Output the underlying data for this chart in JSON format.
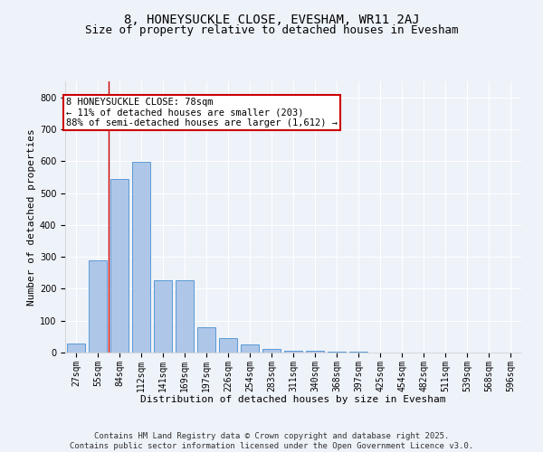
{
  "title_line1": "8, HONEYSUCKLE CLOSE, EVESHAM, WR11 2AJ",
  "title_line2": "Size of property relative to detached houses in Evesham",
  "xlabel": "Distribution of detached houses by size in Evesham",
  "ylabel": "Number of detached properties",
  "categories": [
    "27sqm",
    "55sqm",
    "84sqm",
    "112sqm",
    "141sqm",
    "169sqm",
    "197sqm",
    "226sqm",
    "254sqm",
    "283sqm",
    "311sqm",
    "340sqm",
    "368sqm",
    "397sqm",
    "425sqm",
    "454sqm",
    "482sqm",
    "511sqm",
    "539sqm",
    "568sqm",
    "596sqm"
  ],
  "values": [
    27,
    290,
    545,
    597,
    226,
    226,
    78,
    45,
    25,
    10,
    7,
    5,
    3,
    2,
    1,
    0,
    0,
    0,
    0,
    0,
    0
  ],
  "bar_color": "#aec6e8",
  "bar_edge_color": "#5b9bd5",
  "annotation_title": "8 HONEYSUCKLE CLOSE: 78sqm",
  "annotation_line1": "← 11% of detached houses are smaller (203)",
  "annotation_line2": "88% of semi-detached houses are larger (1,612) →",
  "annotation_box_color": "#ffffff",
  "annotation_box_edge_color": "#cc0000",
  "vline_color": "#cc0000",
  "vline_x": 1.5,
  "ylim": [
    0,
    850
  ],
  "yticks": [
    0,
    100,
    200,
    300,
    400,
    500,
    600,
    700,
    800
  ],
  "bg_color": "#eef2f9",
  "footer_line1": "Contains HM Land Registry data © Crown copyright and database right 2025.",
  "footer_line2": "Contains public sector information licensed under the Open Government Licence v3.0.",
  "title_fontsize": 10,
  "subtitle_fontsize": 9,
  "axis_label_fontsize": 8,
  "tick_fontsize": 7,
  "annotation_fontsize": 7.5,
  "footer_fontsize": 6.5
}
